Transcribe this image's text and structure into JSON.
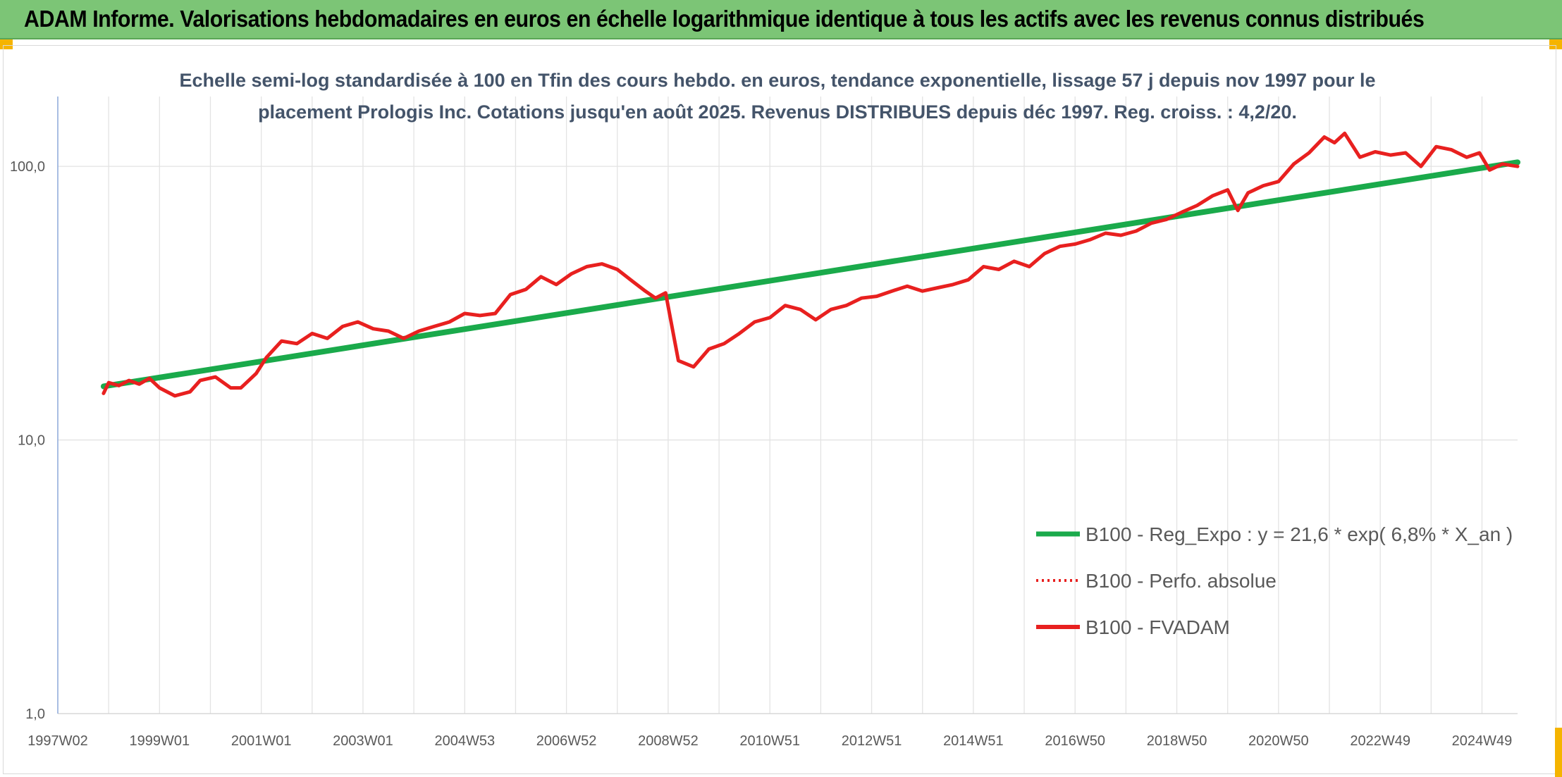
{
  "header": {
    "title": "ADAM Informe. Valorisations hebdomadaires en euros en échelle logarithmique identique à tous les actifs avec les revenus connus distribués"
  },
  "chart_data": {
    "type": "line",
    "title_lines": [
      "Echelle semi-log standardisée à 100 en Tfin des cours hebdo. en euros, tendance exponentielle, lissage 57 j depuis nov 1997 pour le",
      "placement Prologis Inc. Cotations jusqu'en août 2025. Revenus DISTRIBUES depuis déc 1997. Reg. croiss. : 4,2/20."
    ],
    "y_scale": "log",
    "ylim": [
      1,
      180
    ],
    "y_ticks": [
      "1,0",
      "10,0",
      "100,0"
    ],
    "x_range": [
      1997.0,
      2025.7
    ],
    "x_ticks": [
      {
        "label": "1997W02",
        "x": 1997.0
      },
      {
        "label": "1999W01",
        "x": 1999.0
      },
      {
        "label": "2001W01",
        "x": 2001.0
      },
      {
        "label": "2003W01",
        "x": 2003.0
      },
      {
        "label": "2004W53",
        "x": 2005.0
      },
      {
        "label": "2006W52",
        "x": 2007.0
      },
      {
        "label": "2008W52",
        "x": 2009.0
      },
      {
        "label": "2010W51",
        "x": 2011.0
      },
      {
        "label": "2012W51",
        "x": 2013.0
      },
      {
        "label": "2014W51",
        "x": 2015.0
      },
      {
        "label": "2016W50",
        "x": 2017.0
      },
      {
        "label": "2018W50",
        "x": 2019.0
      },
      {
        "label": "2020W50",
        "x": 2021.0
      },
      {
        "label": "2022W49",
        "x": 2023.0
      },
      {
        "label": "2024W49",
        "x": 2025.0
      }
    ],
    "grid": "vertical-and-horizontal",
    "legend_position": "bottom-right",
    "colors": {
      "trend": "#1aaa4b",
      "perf": "#e8201f",
      "fvadam": "#e8201f"
    },
    "series": [
      {
        "name": "B100 - Reg_Expo : y = 21,6 * exp( 6,8% *  X_an )",
        "style": "solid-thick",
        "x": [
          1997.9,
          2025.7
        ],
        "y": [
          15.7,
          103.5
        ]
      },
      {
        "name": "B100 - Perfo. absolue",
        "style": "dotted",
        "x": [],
        "y": []
      },
      {
        "name": "B100 - FVADAM",
        "style": "solid",
        "x": [
          1997.9,
          1998.0,
          1998.2,
          1998.4,
          1998.6,
          1998.8,
          1999.0,
          1999.3,
          1999.6,
          1999.8,
          2000.1,
          2000.4,
          2000.6,
          2000.9,
          2001.1,
          2001.4,
          2001.7,
          2002.0,
          2002.3,
          2002.6,
          2002.9,
          2003.2,
          2003.5,
          2003.8,
          2004.1,
          2004.4,
          2004.7,
          2005.0,
          2005.3,
          2005.6,
          2005.9,
          2006.2,
          2006.5,
          2006.8,
          2007.1,
          2007.4,
          2007.7,
          2008.0,
          2008.3,
          2008.55,
          2008.75,
          2008.95,
          2009.2,
          2009.5,
          2009.8,
          2010.1,
          2010.4,
          2010.7,
          2011.0,
          2011.3,
          2011.6,
          2011.9,
          2012.2,
          2012.5,
          2012.8,
          2013.1,
          2013.4,
          2013.7,
          2014.0,
          2014.3,
          2014.6,
          2014.9,
          2015.2,
          2015.5,
          2015.8,
          2016.1,
          2016.4,
          2016.7,
          2017.0,
          2017.3,
          2017.6,
          2017.9,
          2018.2,
          2018.5,
          2018.8,
          2019.1,
          2019.4,
          2019.7,
          2020.0,
          2020.2,
          2020.4,
          2020.7,
          2021.0,
          2021.3,
          2021.6,
          2021.9,
          2022.1,
          2022.3,
          2022.6,
          2022.9,
          2023.2,
          2023.5,
          2023.8,
          2024.1,
          2024.4,
          2024.7,
          2024.95,
          2025.15,
          2025.4,
          2025.7
        ],
        "y": [
          14.8,
          16.2,
          15.8,
          16.5,
          16.0,
          16.8,
          15.5,
          14.5,
          15.0,
          16.5,
          17.0,
          15.5,
          15.5,
          17.5,
          20.0,
          23.0,
          22.5,
          24.5,
          23.5,
          26.0,
          27.0,
          25.5,
          25.0,
          23.5,
          25.0,
          26.0,
          27.0,
          29.0,
          28.5,
          29.0,
          34.0,
          35.5,
          39.5,
          37.0,
          40.5,
          43.0,
          44.0,
          42.0,
          38.0,
          35.0,
          33.0,
          34.5,
          19.5,
          18.5,
          21.5,
          22.5,
          24.5,
          27.0,
          28.0,
          31.0,
          30.0,
          27.5,
          30.0,
          31.0,
          33.0,
          33.5,
          35.0,
          36.5,
          35.0,
          36.0,
          37.0,
          38.5,
          43.0,
          42.0,
          45.0,
          43.0,
          48.0,
          51.0,
          52.0,
          54.0,
          57.0,
          56.0,
          58.0,
          62.0,
          64.0,
          68.0,
          72.0,
          78.0,
          82.0,
          69.0,
          80.0,
          85.0,
          88.0,
          102.0,
          112.0,
          128.0,
          122.0,
          132.0,
          108.0,
          113.0,
          110.0,
          112.0,
          100.0,
          118.0,
          115.0,
          108.0,
          112.0,
          97.0,
          102.0,
          100.0
        ]
      }
    ]
  }
}
